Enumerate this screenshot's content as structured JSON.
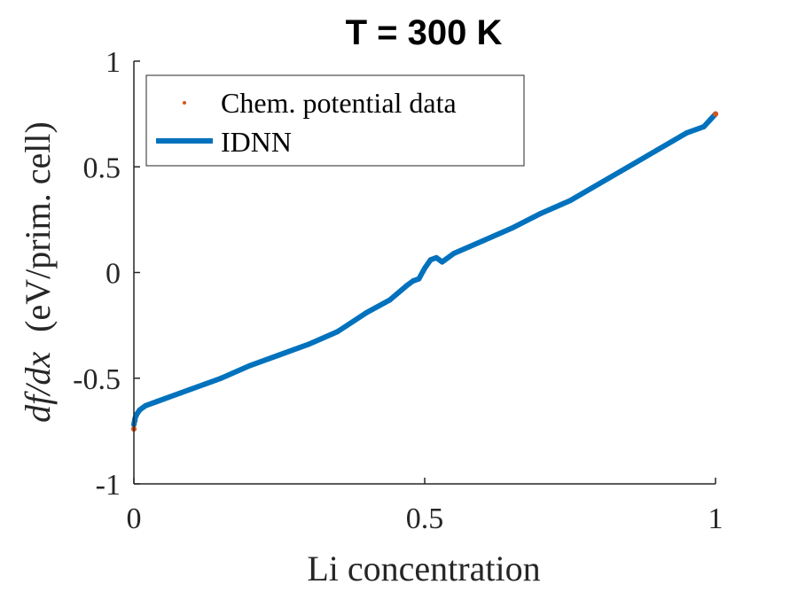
{
  "chart_data": {
    "type": "line",
    "title": "T = 300 K",
    "xlabel": "Li concentration",
    "ylabel_math": "df/dx",
    "ylabel_units": "(eV/prim.  cell)",
    "xlim": [
      0,
      1
    ],
    "ylim": [
      -1,
      1
    ],
    "xticks": [
      0,
      0.5,
      1
    ],
    "xtick_labels": [
      "0",
      "0.5",
      "1"
    ],
    "yticks": [
      -1,
      -0.5,
      0,
      0.5,
      1
    ],
    "ytick_labels": [
      "-1",
      "-0.5",
      "0",
      "0.5",
      "1"
    ],
    "grid": false,
    "legend_position": "top-left",
    "series": [
      {
        "name": "Chem. potential data",
        "style": "markers",
        "color": "#D95319",
        "x": [
          0.0,
          0.002,
          0.005,
          0.01,
          0.02,
          0.04,
          0.06,
          0.08,
          0.1,
          0.15,
          0.2,
          0.25,
          0.3,
          0.35,
          0.4,
          0.44,
          0.47,
          0.48,
          0.49,
          0.5,
          0.51,
          0.52,
          0.53,
          0.55,
          0.6,
          0.65,
          0.7,
          0.75,
          0.8,
          0.85,
          0.9,
          0.95,
          0.98,
          0.99,
          1.0
        ],
        "values": [
          -0.74,
          -0.7,
          -0.67,
          -0.65,
          -0.63,
          -0.61,
          -0.59,
          -0.57,
          -0.55,
          -0.5,
          -0.44,
          -0.39,
          -0.34,
          -0.28,
          -0.19,
          -0.13,
          -0.06,
          -0.04,
          -0.03,
          0.02,
          0.06,
          0.07,
          0.05,
          0.09,
          0.15,
          0.21,
          0.28,
          0.34,
          0.42,
          0.5,
          0.58,
          0.66,
          0.69,
          0.72,
          0.75
        ]
      },
      {
        "name": "IDNN",
        "style": "line",
        "color": "#0072BD",
        "x": [
          0.0,
          0.002,
          0.005,
          0.01,
          0.02,
          0.04,
          0.06,
          0.08,
          0.1,
          0.15,
          0.2,
          0.25,
          0.3,
          0.35,
          0.4,
          0.44,
          0.47,
          0.48,
          0.49,
          0.5,
          0.51,
          0.52,
          0.53,
          0.55,
          0.6,
          0.65,
          0.7,
          0.75,
          0.8,
          0.85,
          0.9,
          0.95,
          0.98,
          0.99,
          1.0
        ],
        "values": [
          -0.72,
          -0.69,
          -0.67,
          -0.65,
          -0.63,
          -0.61,
          -0.59,
          -0.57,
          -0.55,
          -0.5,
          -0.44,
          -0.39,
          -0.34,
          -0.28,
          -0.19,
          -0.13,
          -0.06,
          -0.04,
          -0.03,
          0.02,
          0.06,
          0.07,
          0.05,
          0.09,
          0.15,
          0.21,
          0.28,
          0.34,
          0.42,
          0.5,
          0.58,
          0.66,
          0.69,
          0.72,
          0.75
        ]
      }
    ]
  }
}
